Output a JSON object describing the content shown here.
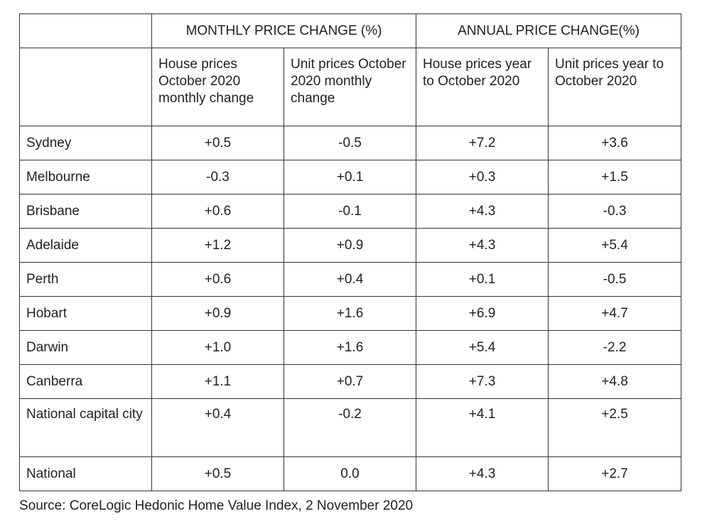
{
  "table": {
    "group_headers": [
      "",
      "MONTHLY PRICE CHANGE (%)",
      "ANNUAL PRICE CHANGE(%)"
    ],
    "sub_headers": [
      "",
      "House prices October 2020 monthly change",
      "Unit prices October 2020 monthly change",
      "House prices year to October 2020",
      "Unit prices year to October 2020"
    ],
    "rows": [
      {
        "city": "Sydney",
        "values": [
          "+0.5",
          "-0.5",
          "+7.2",
          "+3.6"
        ]
      },
      {
        "city": "Melbourne",
        "values": [
          "-0.3",
          "+0.1",
          "+0.3",
          "+1.5"
        ]
      },
      {
        "city": "Brisbane",
        "values": [
          "+0.6",
          "-0.1",
          "+4.3",
          "-0.3"
        ]
      },
      {
        "city": "Adelaide",
        "values": [
          "+1.2",
          "+0.9",
          "+4.3",
          "+5.4"
        ]
      },
      {
        "city": "Perth",
        "values": [
          "+0.6",
          "+0.4",
          "+0.1",
          "-0.5"
        ]
      },
      {
        "city": "Hobart",
        "values": [
          "+0.9",
          "+1.6",
          "+6.9",
          "+4.7"
        ]
      },
      {
        "city": "Darwin",
        "values": [
          "+1.0",
          "+1.6",
          "+5.4",
          "-2.2"
        ]
      },
      {
        "city": "Canberra",
        "values": [
          "+1.1",
          "+0.7",
          "+7.3",
          "+4.8"
        ]
      },
      {
        "city": "National capital city",
        "values": [
          "+0.4",
          "-0.2",
          "+4.1",
          "+2.5"
        ]
      },
      {
        "city": "National",
        "values": [
          "+0.5",
          "0.0",
          "+4.3",
          "+2.7"
        ]
      }
    ]
  },
  "source": "Source: CoreLogic Hedonic Home Value Index, 2 November 2020"
}
